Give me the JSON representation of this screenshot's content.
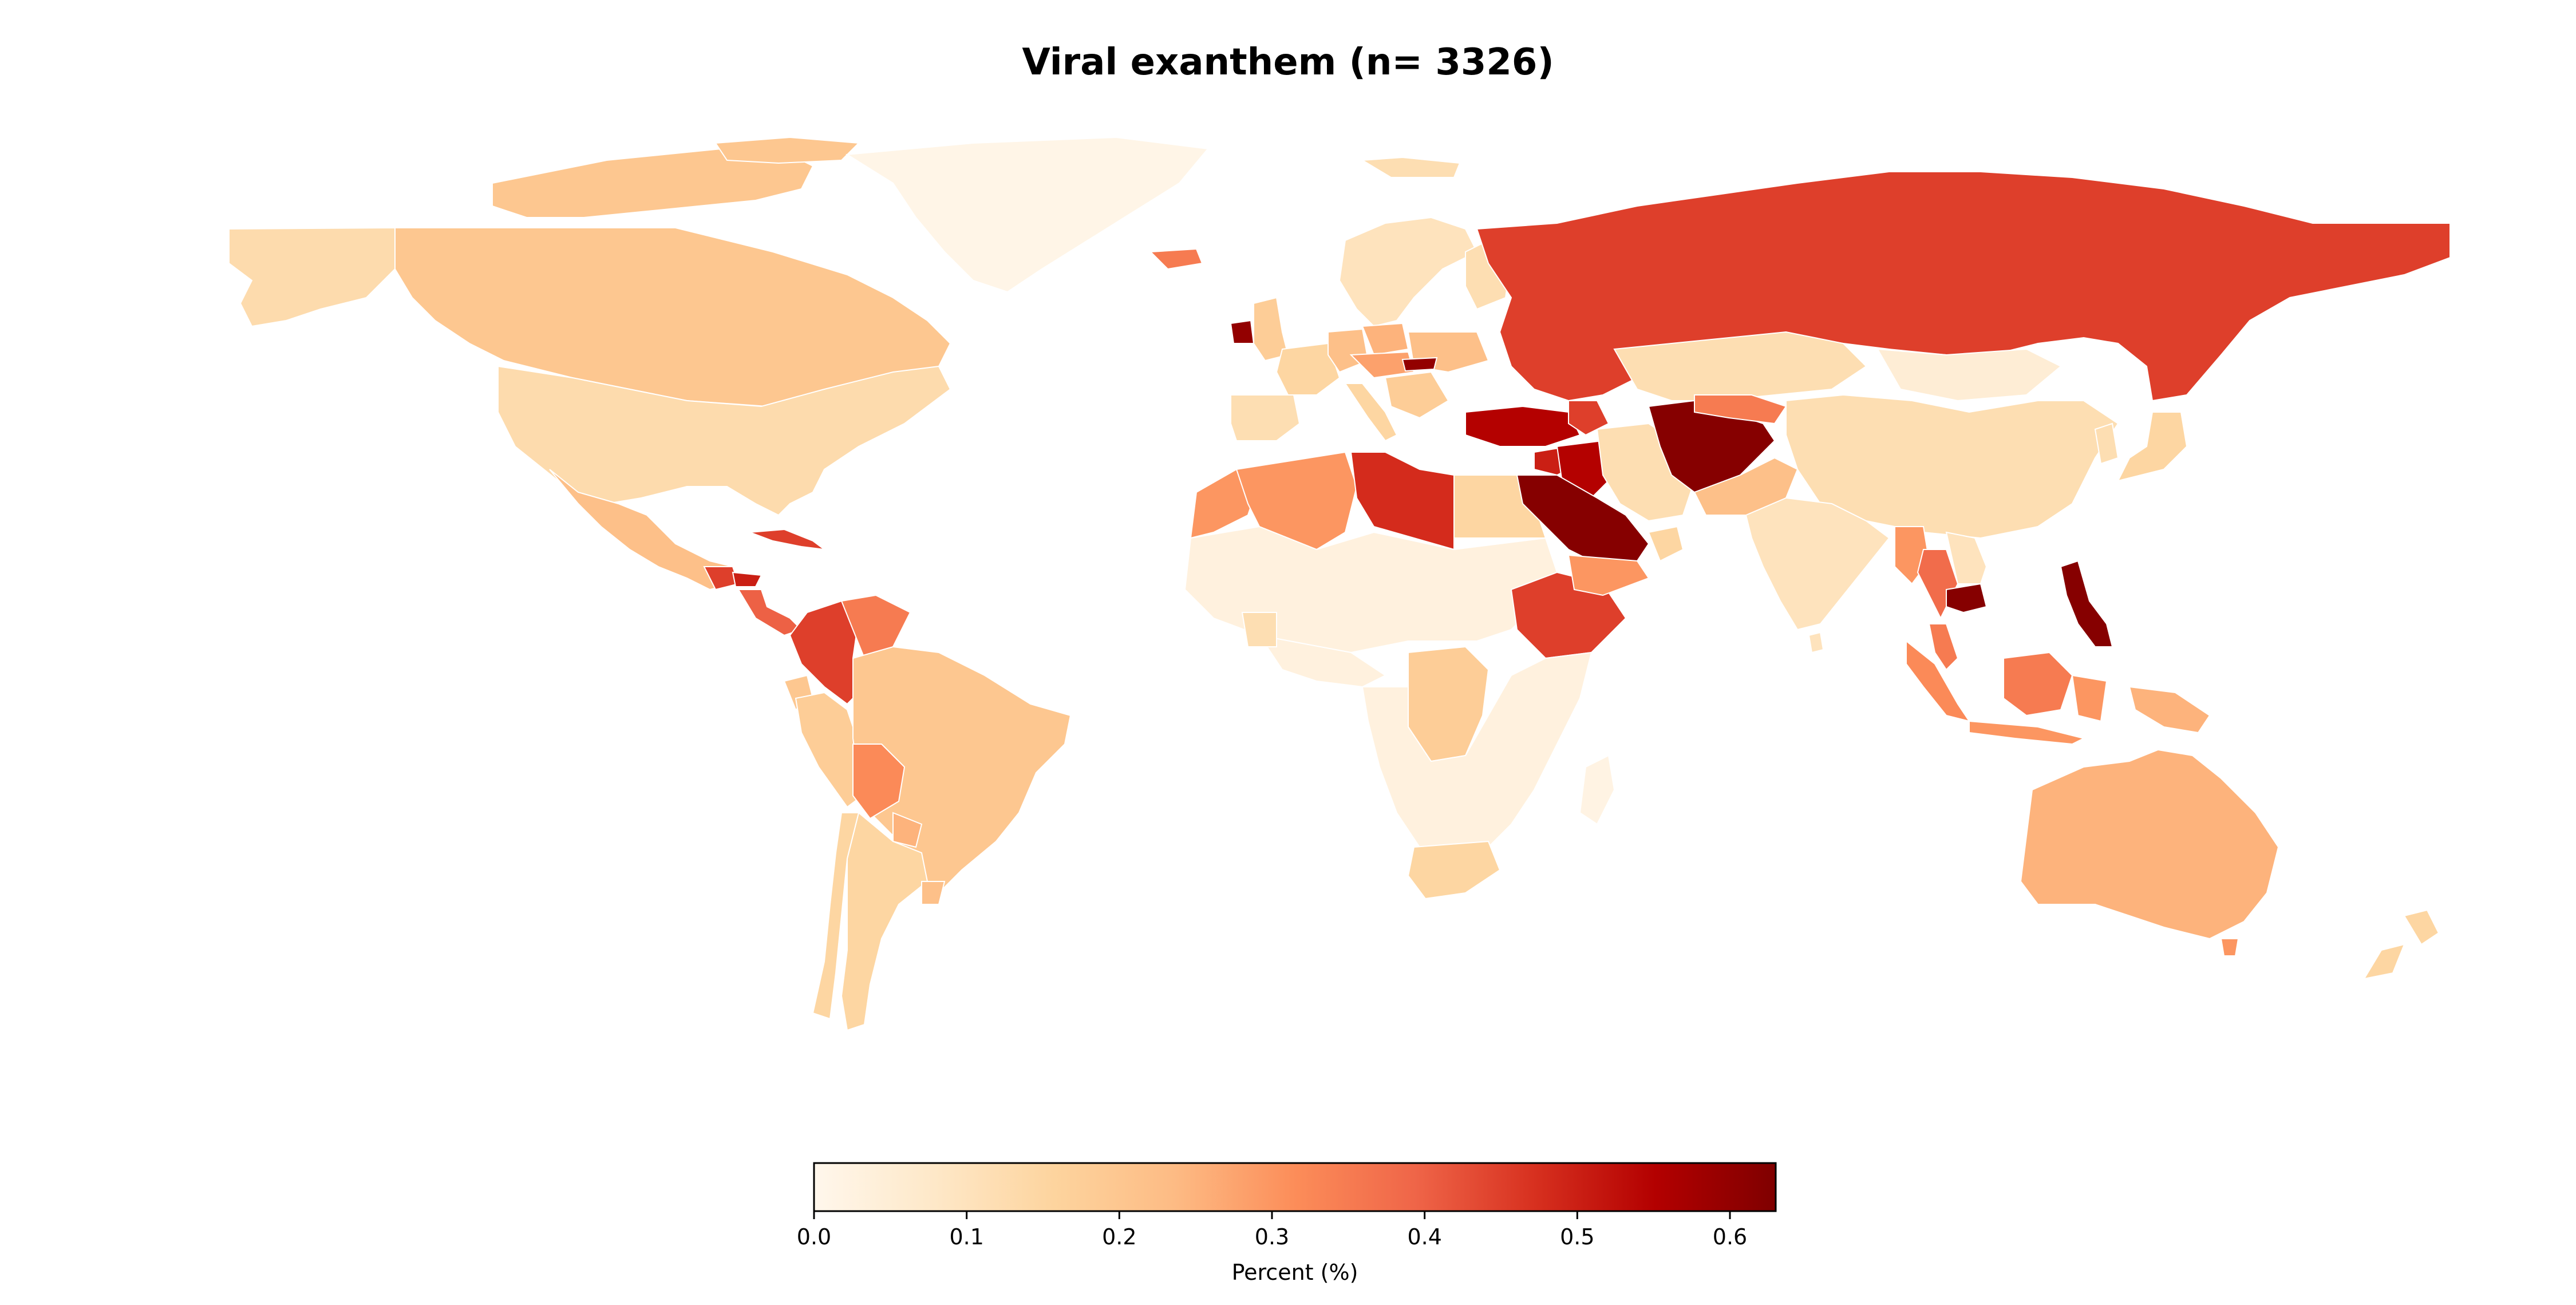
{
  "title": "Viral exanthem (n= 3326)",
  "colorbar": {
    "label": "Percent (%)",
    "min": 0.0,
    "max": 0.63,
    "ticks": [
      0.0,
      0.1,
      0.2,
      0.3,
      0.4,
      0.5,
      0.6
    ],
    "tick_labels": [
      "0.0",
      "0.1",
      "0.2",
      "0.3",
      "0.4",
      "0.5",
      "0.6"
    ],
    "colormap": "OrRd",
    "stops": [
      "#fff7ec",
      "#fee8c8",
      "#fdd49e",
      "#fdbb84",
      "#fc8d59",
      "#ef6548",
      "#d7301f",
      "#b30000",
      "#7f0000"
    ]
  },
  "chart_data": {
    "type": "choropleth",
    "title": "Viral exanthem (n= 3326)",
    "value_label": "Percent (%)",
    "range": [
      0.0,
      0.63
    ],
    "regions": [
      {
        "name": "Canada",
        "value": 0.2
      },
      {
        "name": "Canadian Arctic islands",
        "value": 0.2
      },
      {
        "name": "Alaska",
        "value": 0.13
      },
      {
        "name": "Greenland",
        "value": 0.01
      },
      {
        "name": "United States",
        "value": 0.13
      },
      {
        "name": "Mexico",
        "value": 0.22
      },
      {
        "name": "Guatemala",
        "value": 0.45
      },
      {
        "name": "Honduras",
        "value": 0.5
      },
      {
        "name": "Nicaragua",
        "value": 0.4
      },
      {
        "name": "Cuba",
        "value": 0.45
      },
      {
        "name": "Colombia",
        "value": 0.45
      },
      {
        "name": "Venezuela",
        "value": 0.35
      },
      {
        "name": "Ecuador",
        "value": 0.2
      },
      {
        "name": "Peru",
        "value": 0.18
      },
      {
        "name": "Brazil",
        "value": 0.2
      },
      {
        "name": "Bolivia",
        "value": 0.32
      },
      {
        "name": "Paraguay",
        "value": 0.25
      },
      {
        "name": "Argentina",
        "value": 0.15
      },
      {
        "name": "Chile",
        "value": 0.15
      },
      {
        "name": "Uruguay",
        "value": 0.22
      },
      {
        "name": "Iceland",
        "value": 0.35
      },
      {
        "name": "Ireland",
        "value": 0.6
      },
      {
        "name": "United Kingdom",
        "value": 0.18
      },
      {
        "name": "Scandinavia",
        "value": 0.1
      },
      {
        "name": "Finland",
        "value": 0.12
      },
      {
        "name": "Spain",
        "value": 0.12
      },
      {
        "name": "France",
        "value": 0.15
      },
      {
        "name": "Germany",
        "value": 0.22
      },
      {
        "name": "Poland",
        "value": 0.25
      },
      {
        "name": "Central Europe",
        "value": 0.28
      },
      {
        "name": "Ukraine",
        "value": 0.22
      },
      {
        "name": "Italy",
        "value": 0.15
      },
      {
        "name": "Balkans",
        "value": 0.18
      },
      {
        "name": "Hungary",
        "value": 0.6
      },
      {
        "name": "Turkey",
        "value": 0.55
      },
      {
        "name": "Russia",
        "value": 0.45
      },
      {
        "name": "Kazakhstan",
        "value": 0.12
      },
      {
        "name": "Mongolia",
        "value": 0.05
      },
      {
        "name": "China",
        "value": 0.12
      },
      {
        "name": "Morocco",
        "value": 0.3
      },
      {
        "name": "Algeria",
        "value": 0.3
      },
      {
        "name": "Libya",
        "value": 0.48
      },
      {
        "name": "Egypt",
        "value": 0.15
      },
      {
        "name": "Sahel and Sahara",
        "value": 0.03
      },
      {
        "name": "West Africa",
        "value": 0.03
      },
      {
        "name": "Ghana",
        "value": 0.12
      },
      {
        "name": "Ethiopia",
        "value": 0.45
      },
      {
        "name": "Democratic Republic of the Congo",
        "value": 0.18
      },
      {
        "name": "Southern Africa",
        "value": 0.03
      },
      {
        "name": "South Africa",
        "value": 0.15
      },
      {
        "name": "Madagascar",
        "value": 0.02
      },
      {
        "name": "Syria",
        "value": 0.5
      },
      {
        "name": "Iraq",
        "value": 0.55
      },
      {
        "name": "Saudi Arabia",
        "value": 0.62
      },
      {
        "name": "Yemen",
        "value": 0.3
      },
      {
        "name": "Oman",
        "value": 0.15
      },
      {
        "name": "Iran",
        "value": 0.12
      },
      {
        "name": "Afghanistan",
        "value": 0.62
      },
      {
        "name": "Pakistan",
        "value": 0.22
      },
      {
        "name": "Caucasus",
        "value": 0.45
      },
      {
        "name": "Uzbekistan",
        "value": 0.35
      },
      {
        "name": "India",
        "value": 0.1
      },
      {
        "name": "Myanmar",
        "value": 0.3
      },
      {
        "name": "Thailand",
        "value": 0.38
      },
      {
        "name": "Cambodia",
        "value": 0.62
      },
      {
        "name": "Vietnam",
        "value": 0.1
      },
      {
        "name": "Malaysia",
        "value": 0.35
      },
      {
        "name": "Sumatra",
        "value": 0.32
      },
      {
        "name": "Borneo",
        "value": 0.35
      },
      {
        "name": "Indonesia islands",
        "value": 0.3
      },
      {
        "name": "Philippines",
        "value": 0.62
      },
      {
        "name": "Japan",
        "value": 0.15
      },
      {
        "name": "Korea",
        "value": 0.12
      },
      {
        "name": "New Guinea",
        "value": 0.25
      },
      {
        "name": "Australia",
        "value": 0.25
      },
      {
        "name": "Tasmania",
        "value": 0.3
      },
      {
        "name": "New Zealand",
        "value": 0.15
      },
      {
        "name": "Svalbard",
        "value": 0.12
      },
      {
        "name": "Sri Lanka",
        "value": 0.1
      }
    ]
  }
}
